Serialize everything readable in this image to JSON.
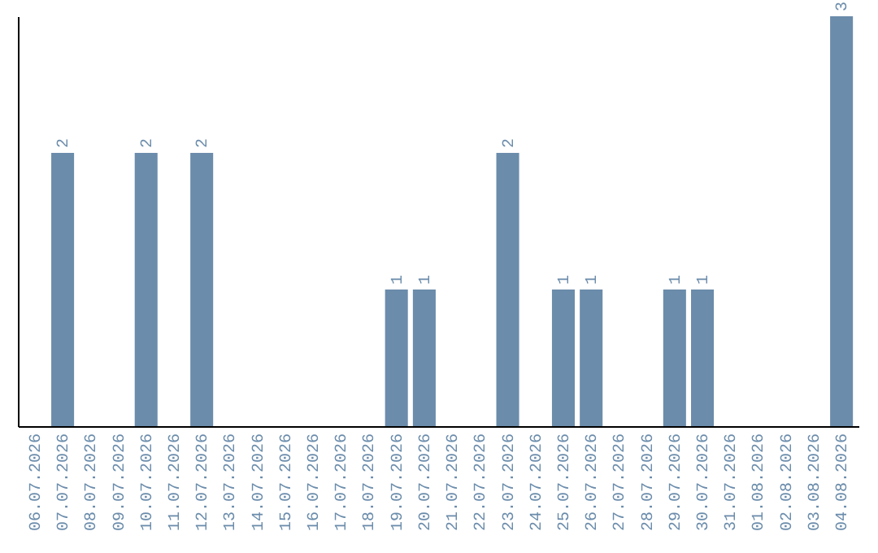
{
  "chart_data": {
    "type": "bar",
    "categories": [
      "06.07.2026",
      "07.07.2026",
      "08.07.2026",
      "09.07.2026",
      "10.07.2026",
      "11.07.2026",
      "12.07.2026",
      "13.07.2026",
      "14.07.2026",
      "15.07.2026",
      "16.07.2026",
      "17.07.2026",
      "18.07.2026",
      "19.07.2026",
      "20.07.2026",
      "21.07.2026",
      "22.07.2026",
      "23.07.2026",
      "24.07.2026",
      "25.07.2026",
      "26.07.2026",
      "27.07.2026",
      "28.07.2026",
      "29.07.2026",
      "30.07.2026",
      "31.07.2026",
      "01.08.2026",
      "02.08.2026",
      "03.08.2026",
      "04.08.2026"
    ],
    "values": [
      0,
      2,
      0,
      0,
      2,
      0,
      2,
      0,
      0,
      0,
      0,
      0,
      0,
      1,
      1,
      0,
      0,
      2,
      0,
      1,
      1,
      0,
      0,
      1,
      1,
      0,
      0,
      0,
      0,
      3
    ],
    "value_labels": [
      null,
      "2",
      null,
      null,
      "2",
      null,
      "2",
      null,
      null,
      null,
      null,
      null,
      null,
      "1",
      "1",
      null,
      null,
      "2",
      null,
      "1",
      "1",
      null,
      null,
      "1",
      "1",
      null,
      null,
      null,
      null,
      "3"
    ],
    "color": "#6b8cab"
  }
}
